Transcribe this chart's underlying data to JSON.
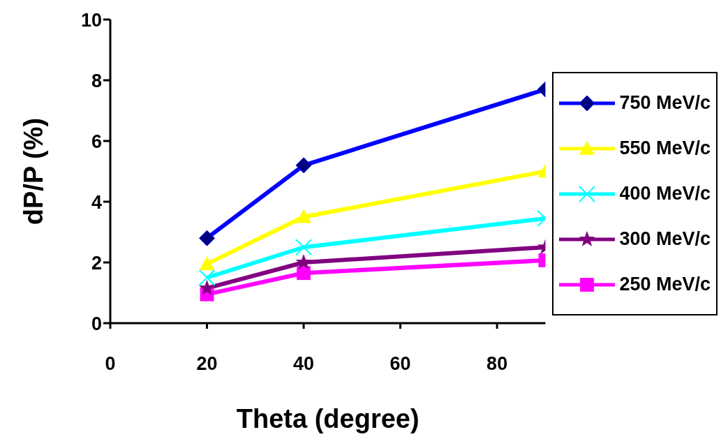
{
  "chart_data": {
    "type": "line",
    "xlabel": "Theta (degree)",
    "ylabel": "dP/P  (%)",
    "x": [
      20,
      40,
      90
    ],
    "series": [
      {
        "name": "750 MeV/c",
        "color": "#0000ff",
        "marker": "diamond",
        "values": [
          2.8,
          5.2,
          7.7
        ]
      },
      {
        "name": "550 MeV/c",
        "color": "#ffff00",
        "marker": "triangle",
        "values": [
          1.95,
          3.5,
          5.0
        ]
      },
      {
        "name": "400 MeV/c",
        "color": "#00ffff",
        "marker": "cross",
        "values": [
          1.5,
          2.5,
          3.45
        ]
      },
      {
        "name": "300 MeV/c",
        "color": "#800080",
        "marker": "star",
        "values": [
          1.15,
          2.0,
          2.5
        ]
      },
      {
        "name": "250 MeV/c",
        "color": "#ff00ff",
        "marker": "square",
        "values": [
          0.95,
          1.65,
          2.07
        ]
      }
    ],
    "xlim": [
      0,
      90
    ],
    "xticks": [
      0,
      20,
      40,
      60,
      80
    ],
    "ylim": [
      0,
      10
    ],
    "yticks": [
      0,
      2,
      4,
      6,
      8,
      10
    ],
    "grid": false,
    "legend": "right",
    "line_style": "solid"
  }
}
